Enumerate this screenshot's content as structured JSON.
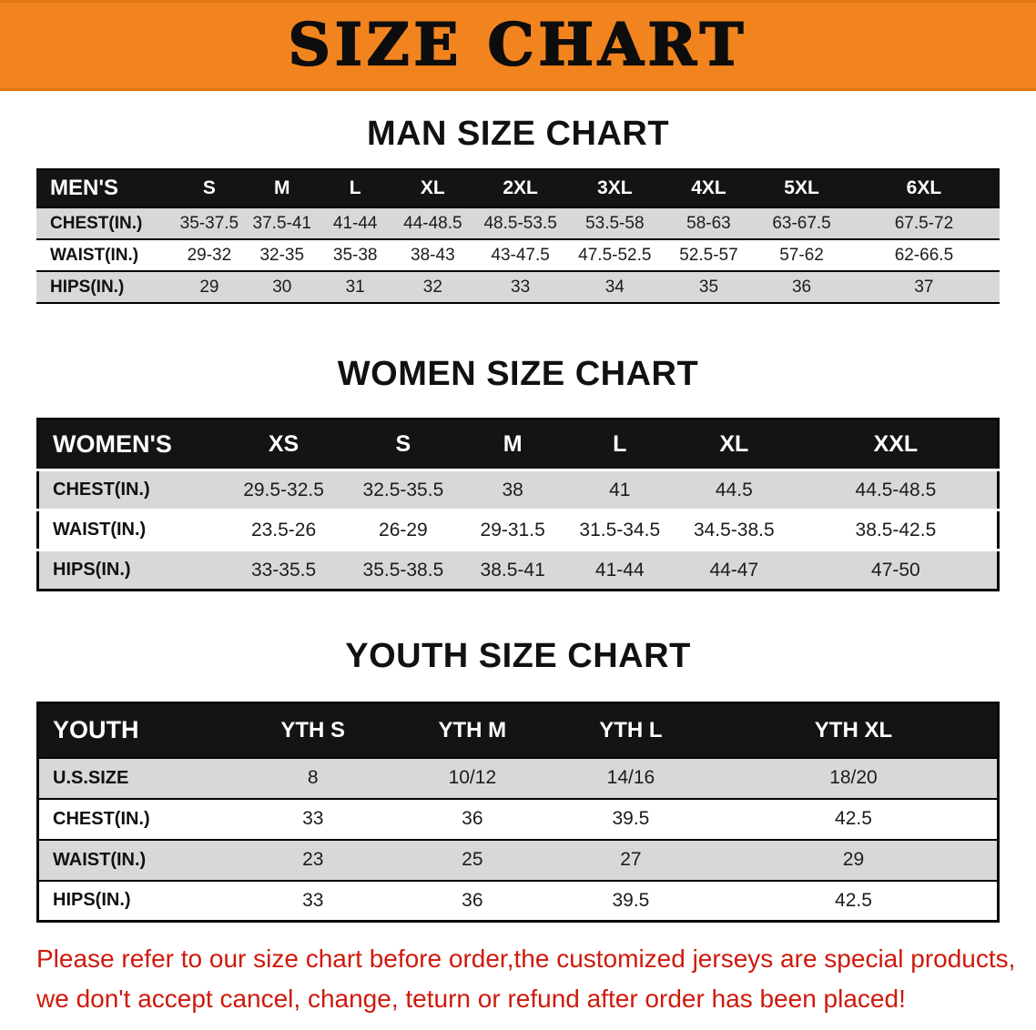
{
  "banner": {
    "title": "SIZE CHART"
  },
  "sections": {
    "men": {
      "heading": "MAN SIZE CHART"
    },
    "women": {
      "heading": "WOMEN SIZE CHART"
    },
    "youth": {
      "heading": "YOUTH SIZE CHART"
    }
  },
  "tables": {
    "men": {
      "header": [
        "MEN'S",
        "S",
        "M",
        "L",
        "XL",
        "2XL",
        "3XL",
        "4XL",
        "5XL",
        "6XL"
      ],
      "rows": [
        [
          "CHEST(IN.)",
          "35-37.5",
          "37.5-41",
          "41-44",
          "44-48.5",
          "48.5-53.5",
          "53.5-58",
          "58-63",
          "63-67.5",
          "67.5-72"
        ],
        [
          "WAIST(IN.)",
          "29-32",
          "32-35",
          "35-38",
          "38-43",
          "43-47.5",
          "47.5-52.5",
          "52.5-57",
          "57-62",
          "62-66.5"
        ],
        [
          "HIPS(IN.)",
          "29",
          "30",
          "31",
          "32",
          "33",
          "34",
          "35",
          "36",
          "37"
        ]
      ]
    },
    "women": {
      "header": [
        "WOMEN'S",
        "XS",
        "S",
        "M",
        "L",
        "XL",
        "XXL"
      ],
      "rows": [
        [
          "CHEST(IN.)",
          "29.5-32.5",
          "32.5-35.5",
          "38",
          "41",
          "44.5",
          "44.5-48.5"
        ],
        [
          "WAIST(IN.)",
          "23.5-26",
          "26-29",
          "29-31.5",
          "31.5-34.5",
          "34.5-38.5",
          "38.5-42.5"
        ],
        [
          "HIPS(IN.)",
          "33-35.5",
          "35.5-38.5",
          "38.5-41",
          "41-44",
          "44-47",
          "47-50"
        ]
      ]
    },
    "youth": {
      "header": [
        "YOUTH",
        "YTH S",
        "YTH M",
        "YTH L",
        "YTH XL"
      ],
      "rows": [
        [
          "U.S.SIZE",
          "8",
          "10/12",
          "14/16",
          "18/20"
        ],
        [
          "CHEST(IN.)",
          "33",
          "36",
          "39.5",
          "42.5"
        ],
        [
          "WAIST(IN.)",
          "23",
          "25",
          "27",
          "29"
        ],
        [
          "HIPS(IN.)",
          "33",
          "36",
          "39.5",
          "42.5"
        ]
      ]
    }
  },
  "disclaimer": {
    "line1": "Please refer to our size chart before order,the customized jerseys are special products,",
    "line2": "we don't accept cancel, change, teturn or refund after order has been placed!"
  },
  "colors": {
    "accent_orange": "#f2841f",
    "header_black": "#141414",
    "stripe_gray": "#d8d8d8",
    "warning_red": "#ce1a0c"
  }
}
